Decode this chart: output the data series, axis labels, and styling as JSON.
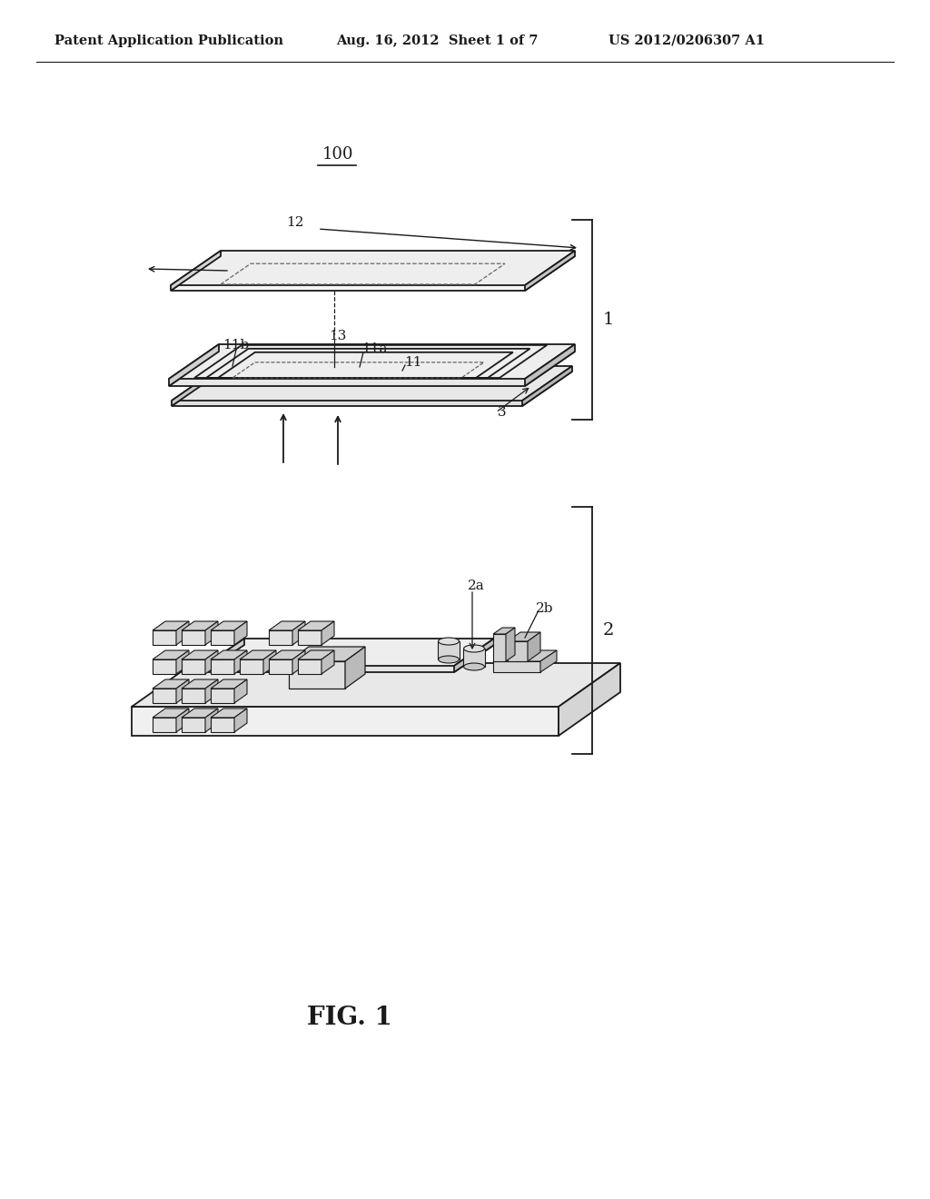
{
  "header_left": "Patent Application Publication",
  "header_mid": "Aug. 16, 2012  Sheet 1 of 7",
  "header_right": "US 2012/0206307 A1",
  "fig_label": "FIG. 1",
  "title_label": "100",
  "bg_color": "#ffffff",
  "line_color": "#1a1a1a",
  "gray_light": "#f0f0f0",
  "gray_mid": "#d8d8d8",
  "gray_dark": "#b8b8b8"
}
